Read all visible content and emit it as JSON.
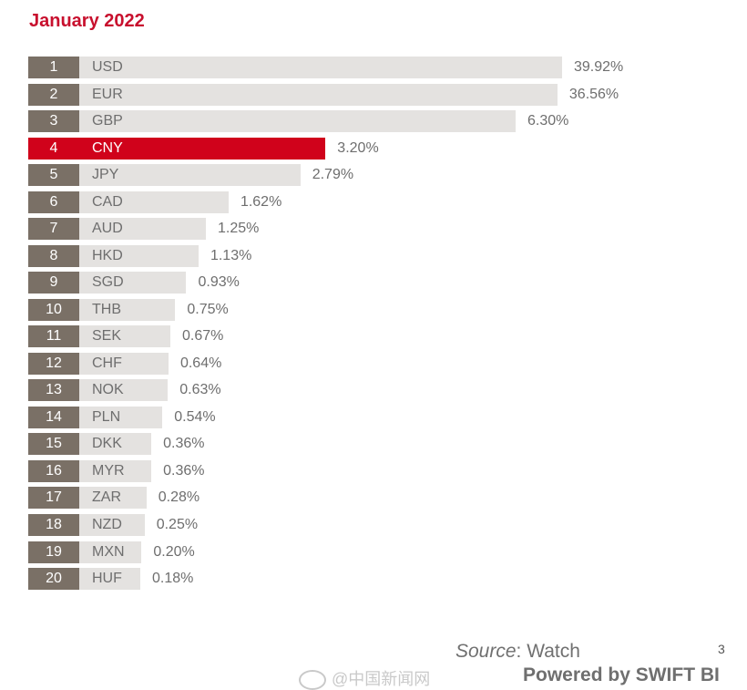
{
  "title": "January 2022",
  "source_label": "Source",
  "source_value": ": Watch",
  "page_number": "3",
  "powered_by": "Powered by SWIFT BI",
  "watermark": "@中国新闻网",
  "colors": {
    "bar": "#e4e2e0",
    "rank": "#7a7066",
    "highlight": "#d0021b",
    "title": "#c8102e"
  },
  "chart_data": {
    "type": "bar",
    "orientation": "horizontal",
    "title": "January 2022",
    "highlight": "CNY",
    "rows": [
      {
        "rank": "1",
        "currency": "USD",
        "value": 39.92,
        "label": "39.92%"
      },
      {
        "rank": "2",
        "currency": "EUR",
        "value": 36.56,
        "label": "36.56%"
      },
      {
        "rank": "3",
        "currency": "GBP",
        "value": 6.3,
        "label": "6.30%"
      },
      {
        "rank": "4",
        "currency": "CNY",
        "value": 3.2,
        "label": "3.20%"
      },
      {
        "rank": "5",
        "currency": "JPY",
        "value": 2.79,
        "label": "2.79%"
      },
      {
        "rank": "6",
        "currency": "CAD",
        "value": 1.62,
        "label": "1.62%"
      },
      {
        "rank": "7",
        "currency": "AUD",
        "value": 1.25,
        "label": "1.25%"
      },
      {
        "rank": "8",
        "currency": "HKD",
        "value": 1.13,
        "label": "1.13%"
      },
      {
        "rank": "9",
        "currency": "SGD",
        "value": 0.93,
        "label": "0.93%"
      },
      {
        "rank": "10",
        "currency": "THB",
        "value": 0.75,
        "label": "0.75%"
      },
      {
        "rank": "11",
        "currency": "SEK",
        "value": 0.67,
        "label": "0.67%"
      },
      {
        "rank": "12",
        "currency": "CHF",
        "value": 0.64,
        "label": "0.64%"
      },
      {
        "rank": "13",
        "currency": "NOK",
        "value": 0.63,
        "label": "0.63%"
      },
      {
        "rank": "14",
        "currency": "PLN",
        "value": 0.54,
        "label": "0.54%"
      },
      {
        "rank": "15",
        "currency": "DKK",
        "value": 0.36,
        "label": "0.36%"
      },
      {
        "rank": "16",
        "currency": "MYR",
        "value": 0.36,
        "label": "0.36%"
      },
      {
        "rank": "17",
        "currency": "ZAR",
        "value": 0.28,
        "label": "0.28%"
      },
      {
        "rank": "18",
        "currency": "NZD",
        "value": 0.25,
        "label": "0.25%"
      },
      {
        "rank": "19",
        "currency": "MXN",
        "value": 0.2,
        "label": "0.20%"
      },
      {
        "rank": "20",
        "currency": "HUF",
        "value": 0.18,
        "label": "0.18%"
      }
    ]
  }
}
